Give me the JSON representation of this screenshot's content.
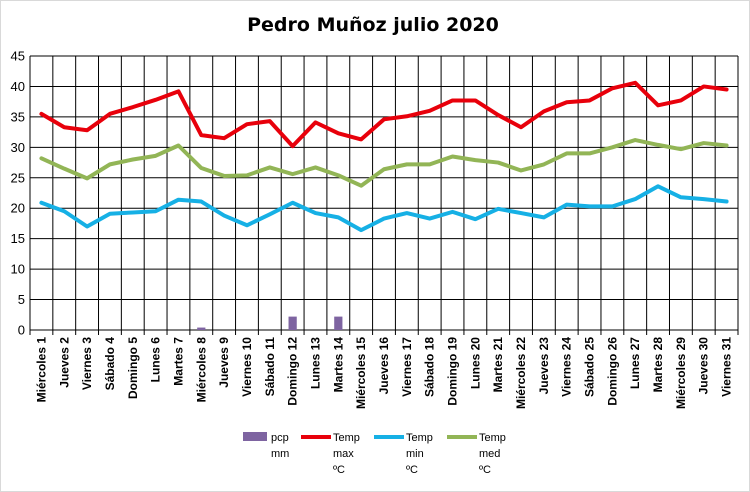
{
  "chart_data": {
    "type": "line",
    "title": "Pedro Muñoz julio 2020",
    "xlabel": "",
    "ylabel": "",
    "ylim": [
      0,
      45
    ],
    "yticks": [
      0,
      5,
      10,
      15,
      20,
      25,
      30,
      35,
      40,
      45
    ],
    "grid": true,
    "legend_position": "bottom",
    "categories": [
      "Miércoles 1",
      "Jueves 2",
      "Viernes 3",
      "Sábado 4",
      "Domingo 5",
      "Lunes 6",
      "Martes 7",
      "Miércoles 8",
      "Jueves 9",
      "Viernes 10",
      "Sábado 11",
      "Domingo 12",
      "Lunes 13",
      "Martes 14",
      "Miércoles 15",
      "Jueves 16",
      "Viernes 17",
      "Sábado 18",
      "Domingo 19",
      "Lunes 20",
      "Martes 21",
      "Miércoles 22",
      "Jueves 23",
      "Viernes 24",
      "Sábado 25",
      "Domingo 26",
      "Lunes 27",
      "Martes 28",
      "Miércoles 29",
      "Jueves 30",
      "Viernes 31"
    ],
    "series": [
      {
        "name": "pcp mm",
        "type": "bar",
        "color": "#7e64a1",
        "values": [
          0,
          0,
          0,
          0,
          0,
          0,
          0,
          0.4,
          0,
          0,
          0,
          2.2,
          0,
          2.2,
          0,
          0,
          0,
          0,
          0,
          0,
          0,
          0,
          0,
          0,
          0,
          0,
          0,
          0,
          0,
          0,
          0
        ]
      },
      {
        "name": "Temp max ºC",
        "type": "line",
        "color": "#e8000b",
        "values": [
          35.5,
          33.3,
          32.8,
          35.5,
          36.6,
          37.8,
          39.2,
          32.0,
          31.5,
          33.8,
          34.3,
          30.2,
          34.1,
          32.3,
          31.3,
          34.6,
          35.1,
          36.0,
          37.7,
          37.7,
          35.3,
          33.3,
          35.9,
          37.4,
          37.7,
          39.7,
          40.6,
          36.9,
          37.7,
          40.0,
          39.5
        ]
      },
      {
        "name": "Temp min ºC",
        "type": "line",
        "color": "#16b0e5",
        "values": [
          20.9,
          19.5,
          17.0,
          19.1,
          19.3,
          19.5,
          21.4,
          21.1,
          18.8,
          17.2,
          19.0,
          20.9,
          19.2,
          18.5,
          16.4,
          18.3,
          19.2,
          18.3,
          19.4,
          18.2,
          19.9,
          19.2,
          18.5,
          20.6,
          20.3,
          20.3,
          21.5,
          23.6,
          21.8,
          21.5,
          21.1
        ]
      },
      {
        "name": "Temp med ºC",
        "type": "line",
        "color": "#92b556",
        "values": [
          28.2,
          26.5,
          24.9,
          27.2,
          28.0,
          28.6,
          30.3,
          26.6,
          25.3,
          25.4,
          26.7,
          25.6,
          26.7,
          25.4,
          23.7,
          26.4,
          27.2,
          27.2,
          28.5,
          27.9,
          27.5,
          26.2,
          27.2,
          29.0,
          29.0,
          30.0,
          31.2,
          30.4,
          29.7,
          30.7,
          30.3
        ]
      }
    ]
  },
  "legend": [
    {
      "key": "pcp",
      "lines": [
        "pcp",
        "mm"
      ]
    },
    {
      "key": "max",
      "lines": [
        "Temp",
        "max",
        "ºC"
      ]
    },
    {
      "key": "min",
      "lines": [
        "Temp",
        "min",
        "ºC"
      ]
    },
    {
      "key": "med",
      "lines": [
        "Temp",
        "med",
        "ºC"
      ]
    }
  ]
}
